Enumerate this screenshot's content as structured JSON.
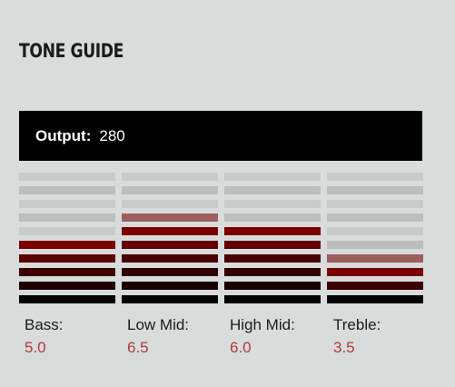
{
  "title": "TONE GUIDE",
  "output": {
    "label": "Output:",
    "value": "280"
  },
  "segments_per_band": 10,
  "colors": {
    "background": "#d8dcdb",
    "output_bg": "#000000",
    "value_text": "#b03a3a",
    "empty_light": "#c9cbca",
    "empty_dark": "#bcbdbc",
    "lit_dark": "#000000",
    "lit_red": "#7a0000"
  },
  "bands": [
    {
      "label": "Bass:",
      "value": "5.0",
      "level": 5.0
    },
    {
      "label": "Low Mid:",
      "value": "6.5",
      "level": 6.5
    },
    {
      "label": "High Mid:",
      "value": "6.0",
      "level": 6.0
    },
    {
      "label": "Treble:",
      "value": "3.5",
      "level": 3.5
    }
  ]
}
